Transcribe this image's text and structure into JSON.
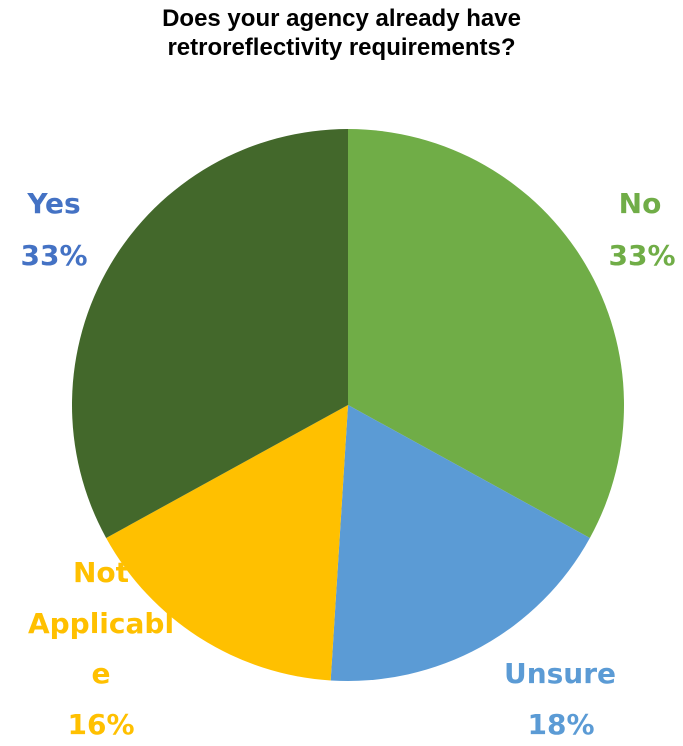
{
  "chart_data": {
    "type": "pie",
    "title_lines": [
      "Does your agency already have",
      "retroreflectivity requirements?"
    ],
    "slices": [
      {
        "label": "No",
        "value": 33,
        "percent_label": "33%",
        "color": "#70AD47",
        "label_color": "#70AD47"
      },
      {
        "label": "Unsure",
        "value": 18,
        "percent_label": "18%",
        "color": "#5B9BD5",
        "label_color": "#5B9BD5"
      },
      {
        "label_lines": [
          "Not",
          "Applicabl",
          "e"
        ],
        "value": 16,
        "percent_label": "16%",
        "color": "#FFC000",
        "label_color": "#FFC000"
      },
      {
        "label": "Yes",
        "value": 33,
        "percent_label": "33%",
        "color": "#43682B",
        "label_color": "#4472C4"
      }
    ],
    "start_angle_deg": 0,
    "direction": "clockwise",
    "legend": "none"
  }
}
